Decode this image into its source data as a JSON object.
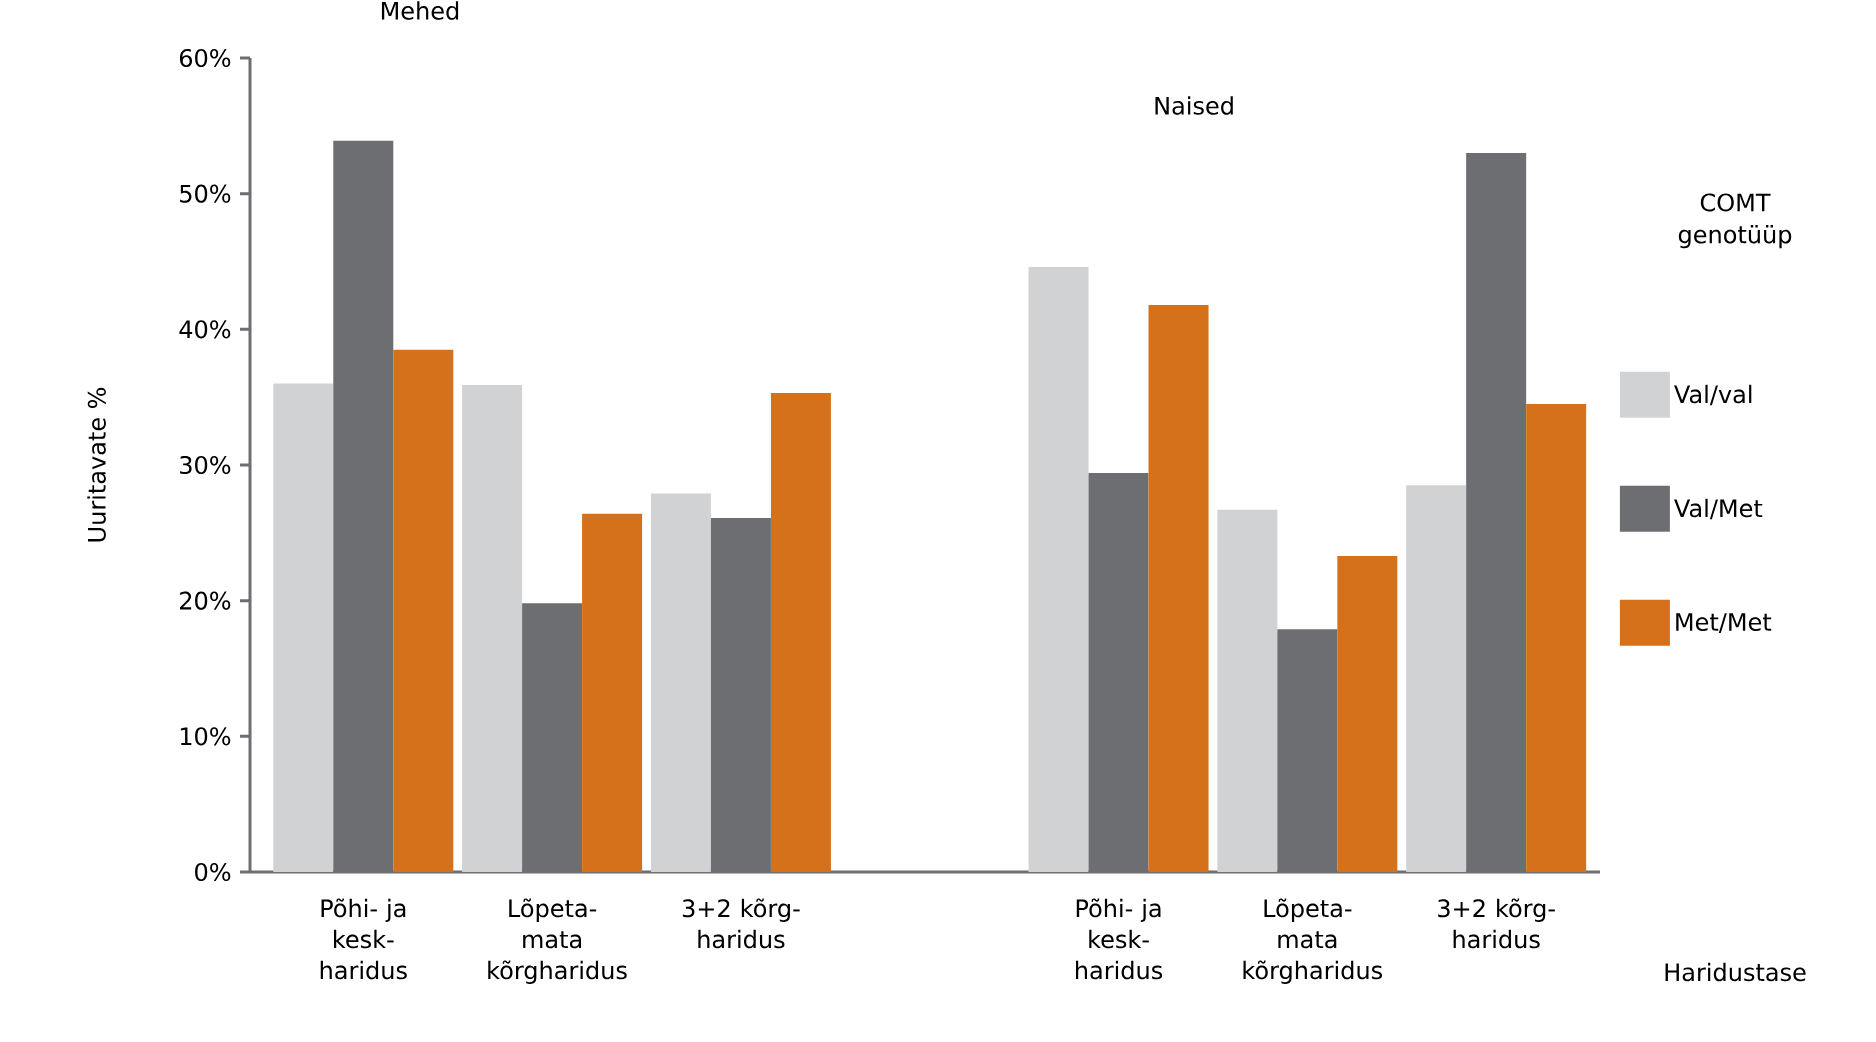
{
  "chart_data": {
    "type": "bar",
    "ylabel": "Uuritavate %",
    "xlabel": "Haridustase",
    "legend_title": "COMT genotüüp",
    "legend": "right",
    "grid": false,
    "annotations": [
      "Mehed",
      "Naised"
    ],
    "categories": [
      "Põhi- ja kesk-haridus",
      "Lõpeta-mata kõrgharidus",
      "3+2 kõrg-haridus",
      null,
      "Põhi- ja kesk-haridus",
      "Lõpeta-mata kõrgharidus",
      "3+2 kõrg-haridus"
    ],
    "ylim": [
      0,
      60
    ],
    "yticks": [
      {
        "value": 0,
        "label": "0%"
      },
      {
        "value": 10,
        "label": "10%"
      },
      {
        "value": 20,
        "label": "20%"
      },
      {
        "value": 30,
        "label": "30%"
      },
      {
        "value": 40,
        "label": "40%"
      },
      {
        "value": 50,
        "label": "50%"
      },
      {
        "value": 60,
        "label": "60%"
      }
    ],
    "series": [
      {
        "name": "Val/val",
        "color": "#d1d2d4",
        "values": [
          36.0,
          35.9,
          27.9,
          null,
          44.6,
          26.7,
          28.5
        ]
      },
      {
        "name": "Val/Met",
        "color": "#6d6e72",
        "values": [
          53.9,
          19.8,
          26.1,
          null,
          29.4,
          17.9,
          53.0
        ]
      },
      {
        "name": "Met/Met",
        "color": "#d4711a",
        "values": [
          38.5,
          26.4,
          35.3,
          null,
          41.8,
          23.3,
          34.5
        ]
      }
    ]
  }
}
